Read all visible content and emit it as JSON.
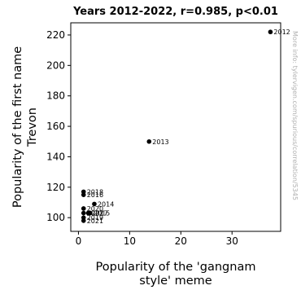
{
  "chart_data": {
    "type": "scatter",
    "title": "Years 2012-2022, r=0.985, p<0.01",
    "xlabel": [
      "Popularity of the 'gangnam",
      "style' meme"
    ],
    "ylabel": [
      "Popularity of the first name",
      "Trevon"
    ],
    "xlim": [
      -1.5,
      39.5
    ],
    "ylim": [
      91,
      228
    ],
    "xticks": [
      0,
      10,
      20,
      30
    ],
    "yticks": [
      100,
      120,
      140,
      160,
      180,
      200,
      220
    ],
    "points": [
      {
        "label": "2012",
        "x": 37.5,
        "y": 222
      },
      {
        "label": "2013",
        "x": 13.8,
        "y": 150
      },
      {
        "label": "2014",
        "x": 3.1,
        "y": 109
      },
      {
        "label": "2015",
        "x": 2.3,
        "y": 103
      },
      {
        "label": "2016",
        "x": 1.0,
        "y": 115
      },
      {
        "label": "2017",
        "x": 1.9,
        "y": 103
      },
      {
        "label": "2018",
        "x": 1.0,
        "y": 117
      },
      {
        "label": "2019",
        "x": 1.0,
        "y": 100
      },
      {
        "label": "2020",
        "x": 1.0,
        "y": 106
      },
      {
        "label": "2021",
        "x": 1.0,
        "y": 98
      },
      {
        "label": "2022",
        "x": 1.0,
        "y": 103
      }
    ],
    "point_color": "#000000",
    "watermark": "More info: tylervigen.com/spurious/correlation/5345"
  }
}
